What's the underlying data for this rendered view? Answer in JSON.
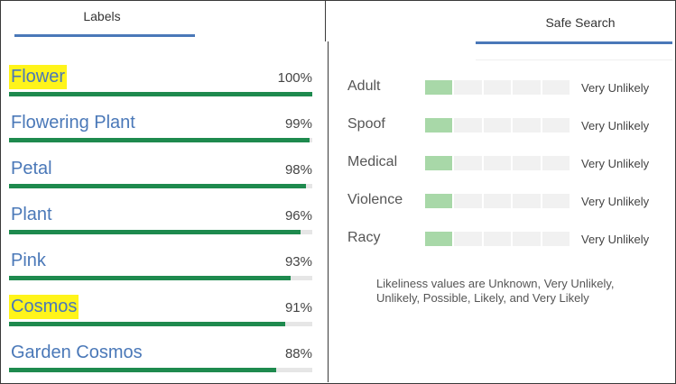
{
  "tabs": {
    "labels": "Labels",
    "safe_search": "Safe Search"
  },
  "labels": [
    {
      "name": "Flower",
      "score": "100%",
      "value": 1.0,
      "highlight": true
    },
    {
      "name": "Flowering Plant",
      "score": "99%",
      "value": 0.99,
      "highlight": false
    },
    {
      "name": "Petal",
      "score": "98%",
      "value": 0.98,
      "highlight": false
    },
    {
      "name": "Plant",
      "score": "96%",
      "value": 0.96,
      "highlight": false
    },
    {
      "name": "Pink",
      "score": "93%",
      "value": 0.93,
      "highlight": false
    },
    {
      "name": "Cosmos",
      "score": "91%",
      "value": 0.91,
      "highlight": true
    },
    {
      "name": "Garden Cosmos",
      "score": "88%",
      "value": 0.88,
      "highlight": false
    }
  ],
  "safe_search": [
    {
      "category": "Adult",
      "likelihood": "Very Unlikely",
      "level": 1
    },
    {
      "category": "Spoof",
      "likelihood": "Very Unlikely",
      "level": 1
    },
    {
      "category": "Medical",
      "likelihood": "Very Unlikely",
      "level": 1
    },
    {
      "category": "Violence",
      "likelihood": "Very Unlikely",
      "level": 1
    },
    {
      "category": "Racy",
      "likelihood": "Very Unlikely",
      "level": 1
    }
  ],
  "note": "Likeliness values are Unknown, Very Unlikely, Unlikely, Possible, Likely, and Very Likely",
  "colors": {
    "accent": "#4a78b8",
    "bar": "#1e8a4e",
    "highlight": "#fff41a",
    "meter_on": "#a8d8a8"
  }
}
